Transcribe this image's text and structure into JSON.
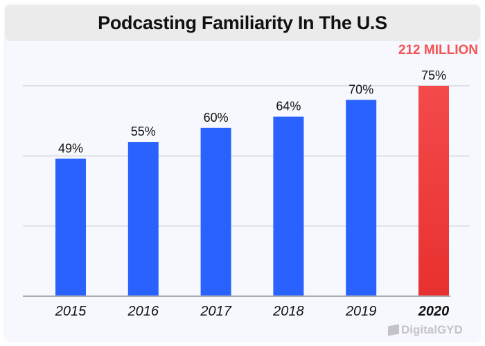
{
  "chart_data": {
    "type": "bar",
    "title": "Podcasting Familiarity In The U.S",
    "categories": [
      "2015",
      "2016",
      "2017",
      "2018",
      "2019",
      "2020"
    ],
    "values": [
      49,
      55,
      60,
      64,
      70,
      75
    ],
    "data_labels": [
      "49%",
      "55%",
      "60%",
      "64%",
      "70%",
      "75%"
    ],
    "annotation": "212 MILLION",
    "ylim": [
      0,
      75
    ],
    "gridlines": [
      0,
      25,
      50,
      75
    ],
    "grid": true,
    "colors": {
      "default": "#2962ff",
      "highlight": "#ea3333",
      "highlight_top": "#f44a4a",
      "annotation": "#f25454"
    },
    "highlight_index": 5
  },
  "watermark": "DigitalGYD"
}
